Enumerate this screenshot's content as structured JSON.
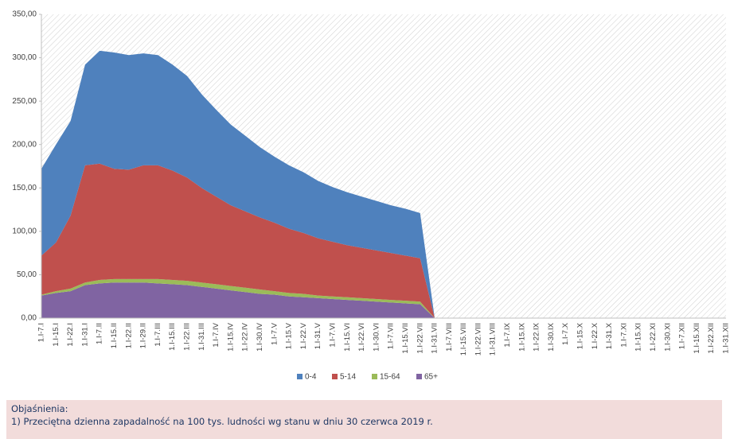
{
  "chart_data": {
    "type": "stacked-area",
    "categories": [
      "1.I-7.I",
      "1.I-15.I",
      "1.I-22.I",
      "1.I-31.I",
      "1.I-7.II",
      "1.I-15.II",
      "1.I-22.II",
      "1.I-29.II",
      "1.I-7.III",
      "1.I-15.III",
      "1.I-22.III",
      "1.I-31.III",
      "1.I-7.IV",
      "1.I-15.IV",
      "1.I-22.IV",
      "1.I-30.IV",
      "1.I-7.V",
      "1.I-15.V",
      "1.I-22.V",
      "1.I-31.V",
      "1.I-7.VI",
      "1.I-15.VI",
      "1.I-22.VI",
      "1.I-30.VI",
      "1.I-7.VII",
      "1.I-15.VII",
      "1.I-22.VII",
      "1.I-31.VII",
      "1.I-7.VIII",
      "1.I-15.VIII",
      "1.I-22.VIII",
      "1.I-31.VIII",
      "1.I-7.IX",
      "1.I-15.IX",
      "1.I-22.IX",
      "1.I-30.IX",
      "1.I-7.X",
      "1.I-15.X",
      "1.I-22.X",
      "1.I-31.X",
      "1.I-7.XI",
      "1.I-15.XI",
      "1.I-22.XI",
      "1.I-30.XI",
      "1.I-7.XII",
      "1.I-15.XII",
      "1.I-22.XII",
      "1.I-31.XII"
    ],
    "series": [
      {
        "name": "0-4",
        "color": "#4f81bd",
        "values": [
          100,
          113,
          109,
          116,
          130,
          134,
          132,
          129,
          127,
          122,
          117,
          108,
          100,
          93,
          87,
          81,
          76,
          73,
          70,
          66,
          63,
          61,
          59,
          57,
          55,
          54,
          52,
          0,
          null,
          null,
          null,
          null,
          null,
          null,
          null,
          null,
          null,
          null,
          null,
          null,
          null,
          null,
          null,
          null,
          null,
          null,
          null,
          null
        ]
      },
      {
        "name": "5-14",
        "color": "#c0504d",
        "values": [
          45,
          56,
          84,
          135,
          134,
          127,
          126,
          131,
          131,
          126,
          119,
          109,
          101,
          93,
          88,
          83,
          79,
          74,
          70,
          66,
          63,
          60,
          58,
          56,
          54,
          52,
          50,
          0,
          null,
          null,
          null,
          null,
          null,
          null,
          null,
          null,
          null,
          null,
          null,
          null,
          null,
          null,
          null,
          null,
          null,
          null,
          null,
          null
        ]
      },
      {
        "name": "15-64",
        "color": "#9bbb59",
        "values": [
          1,
          2,
          3,
          3,
          4,
          4,
          4,
          4,
          5,
          5,
          5,
          5,
          5,
          5,
          5,
          5,
          4,
          4,
          4,
          3,
          3,
          3,
          3,
          3,
          3,
          3,
          3,
          0,
          null,
          null,
          null,
          null,
          null,
          null,
          null,
          null,
          null,
          null,
          null,
          null,
          null,
          null,
          null,
          null,
          null,
          null,
          null,
          null
        ]
      },
      {
        "name": "65+",
        "color": "#8064a2",
        "values": [
          26,
          29,
          31,
          38,
          40,
          41,
          41,
          41,
          40,
          39,
          38,
          36,
          34,
          32,
          30,
          28,
          27,
          25,
          24,
          23,
          22,
          21,
          20,
          19,
          18,
          17,
          16,
          0,
          null,
          null,
          null,
          null,
          null,
          null,
          null,
          null,
          null,
          null,
          null,
          null,
          null,
          null,
          null,
          null,
          null,
          null,
          null,
          null
        ]
      }
    ],
    "ylim": [
      0,
      350
    ],
    "yticks": [
      {
        "value": 0,
        "label": "0,00"
      },
      {
        "value": 50,
        "label": "50,00"
      },
      {
        "value": 100,
        "label": "100,00"
      },
      {
        "value": 150,
        "label": "150,00"
      },
      {
        "value": 200,
        "label": "200,00"
      },
      {
        "value": 250,
        "label": "250,00"
      },
      {
        "value": 300,
        "label": "300,00"
      },
      {
        "value": 350,
        "label": "350,00"
      }
    ],
    "legend": "bottom"
  },
  "notes": {
    "heading": "Objaśnienia:",
    "lines": [
      "1) Przeciętna dzienna zapadalność na 100 tys. ludności wg stanu w dniu 30 czerwca 2019 r."
    ]
  }
}
